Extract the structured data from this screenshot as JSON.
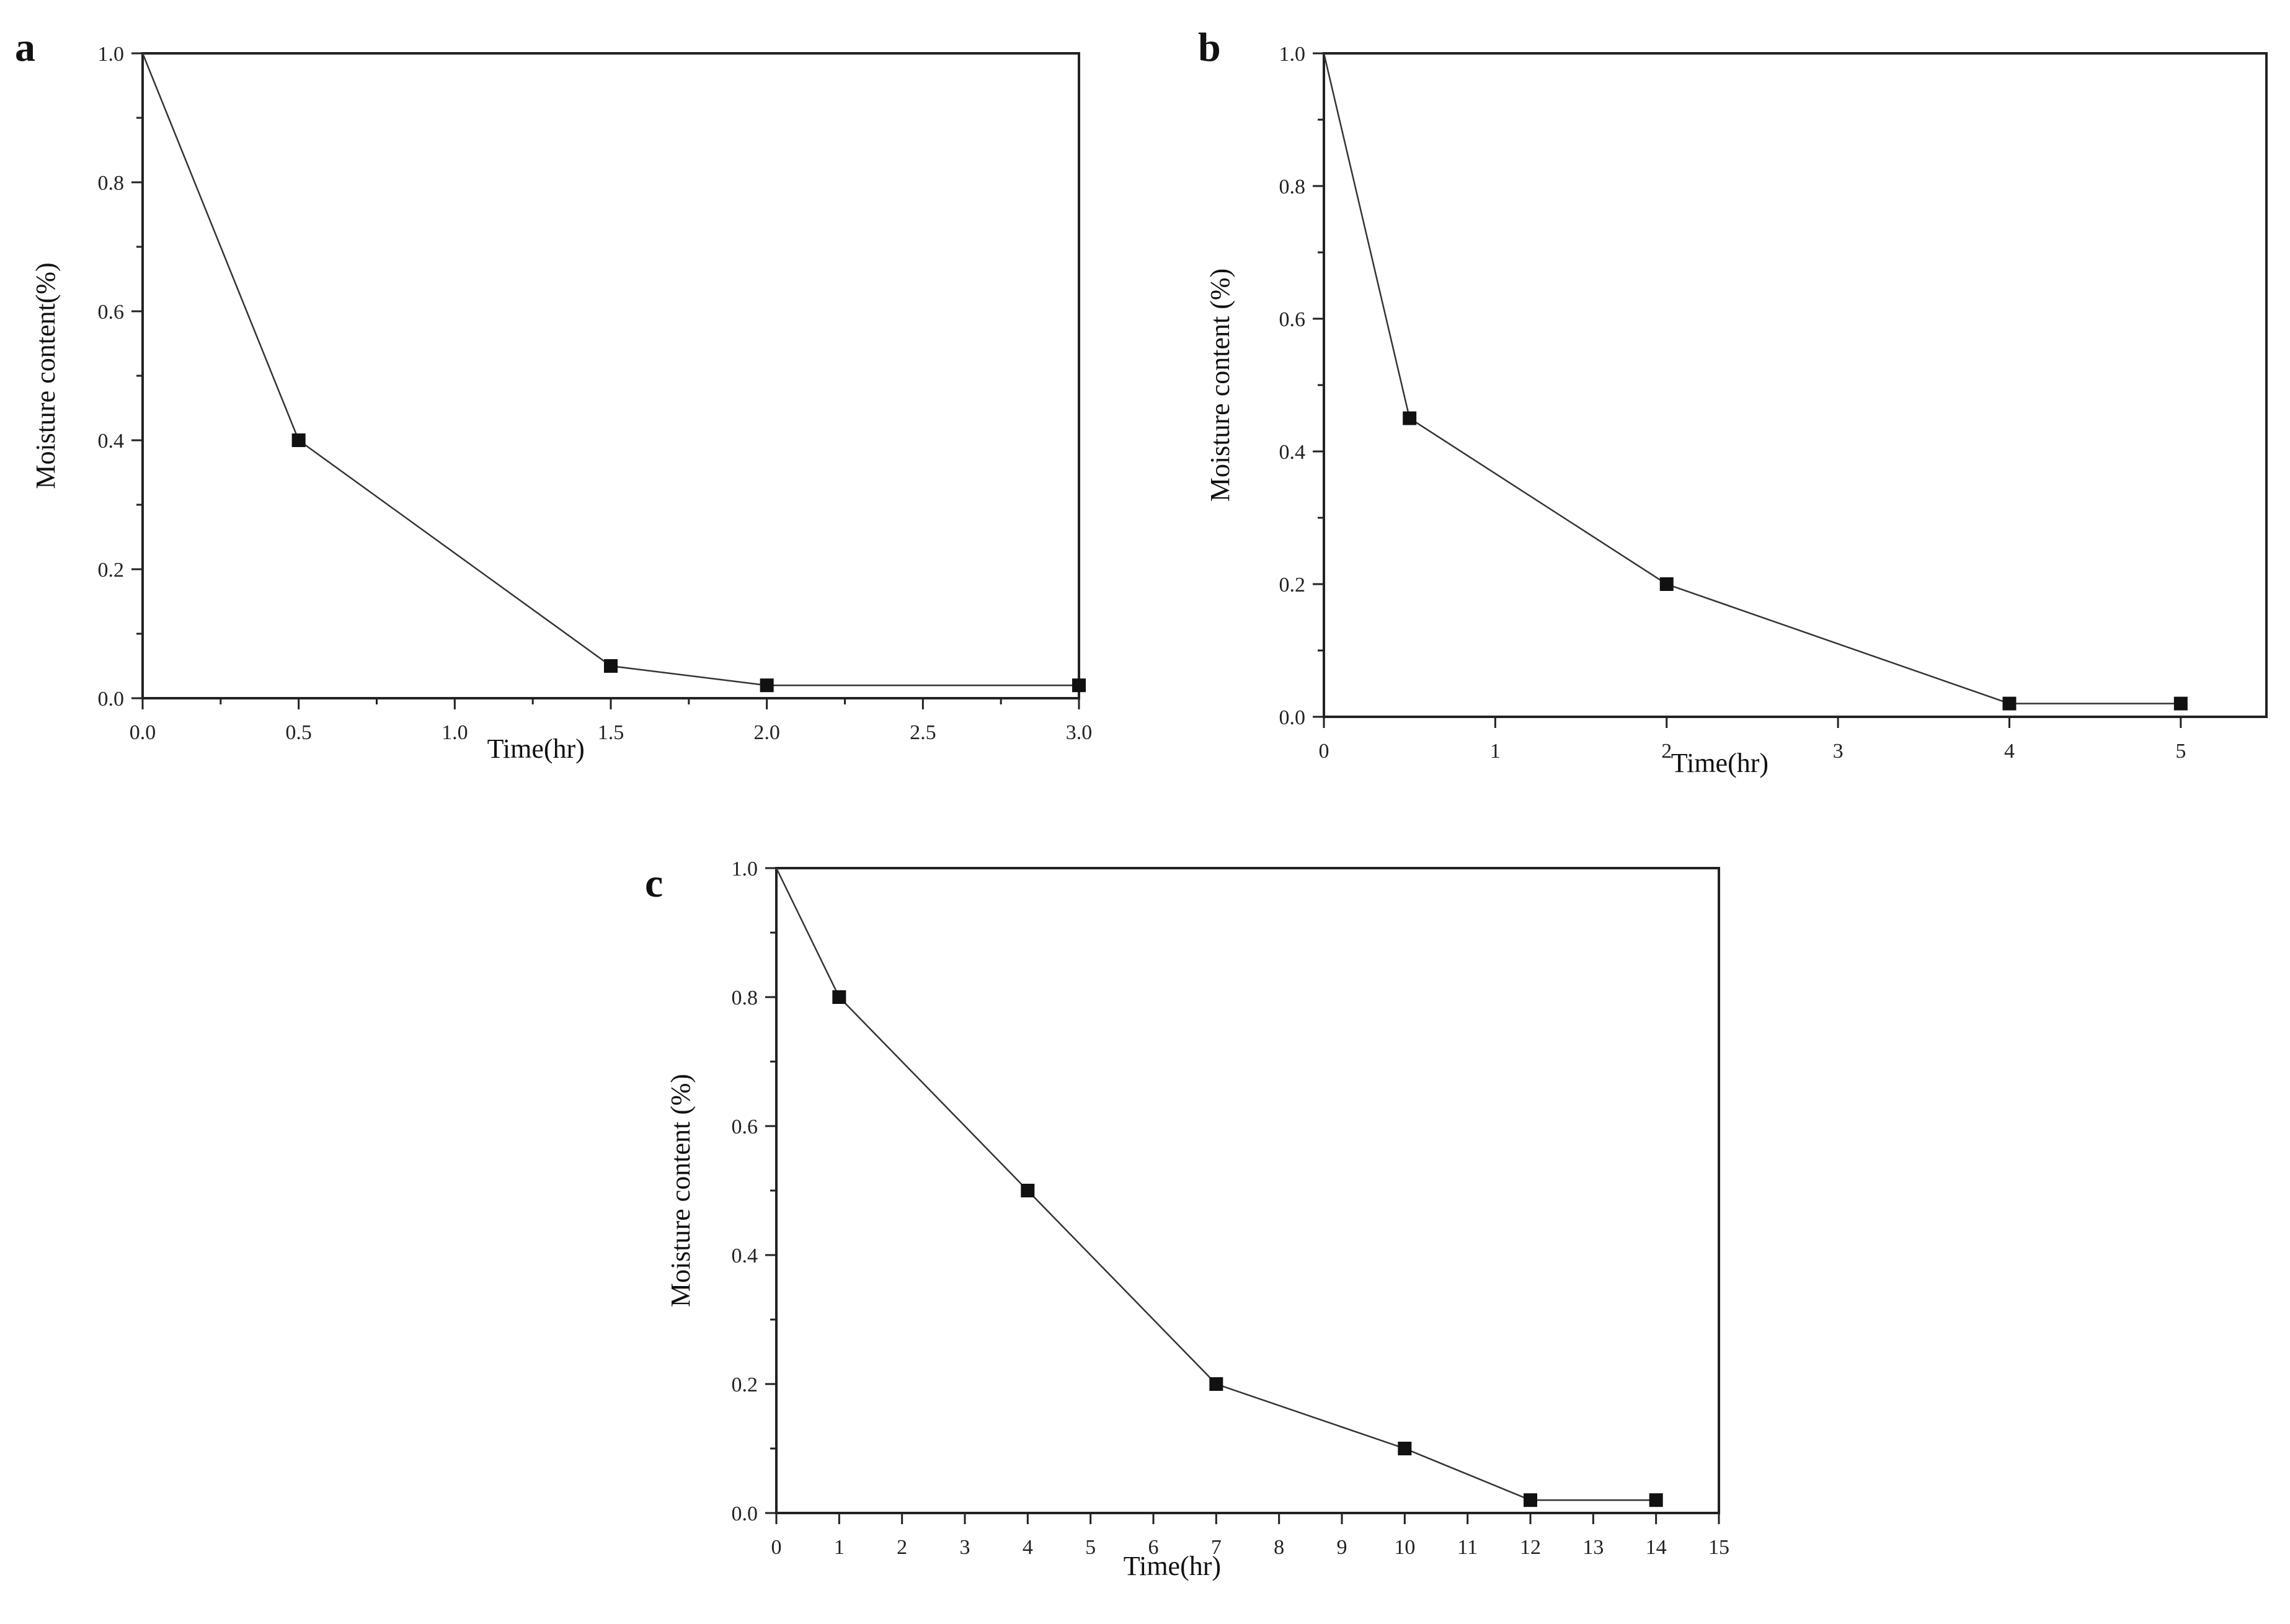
{
  "chart_data": [
    {
      "type": "line",
      "panel_label": "a",
      "xlabel": "Time(hr)",
      "ylabel": "Moisture content(%)",
      "xlim": [
        0,
        3
      ],
      "ylim": [
        0,
        1
      ],
      "x_ticks": [
        0,
        0.5,
        1,
        1.5,
        2,
        2.5,
        3
      ],
      "x_tick_labels": [
        "0.0",
        "0.5",
        "1.0",
        "1.5",
        "2.0",
        "2.5",
        "3.0"
      ],
      "y_ticks": [
        0,
        0.2,
        0.4,
        0.6,
        0.8,
        1
      ],
      "y_tick_labels": [
        "0.0",
        "0.2",
        "0.4",
        "0.6",
        "0.8",
        "1.0"
      ],
      "marker": "square",
      "series": [
        {
          "x": [
            0,
            0.5,
            1.5,
            2,
            3
          ],
          "y": [
            1.0,
            0.4,
            0.05,
            0.02,
            0.02
          ]
        }
      ]
    },
    {
      "type": "line",
      "panel_label": "b",
      "xlabel": "Time(hr)",
      "ylabel": "Moisture content (%)",
      "xlim": [
        0,
        5.5
      ],
      "ylim": [
        0,
        1
      ],
      "x_ticks": [
        0,
        1,
        2,
        3,
        4,
        5
      ],
      "x_tick_labels": [
        "0",
        "1",
        "2",
        "3",
        "4",
        "5"
      ],
      "y_ticks": [
        0,
        0.2,
        0.4,
        0.6,
        0.8,
        1
      ],
      "y_tick_labels": [
        "0.0",
        "0.2",
        "0.4",
        "0.6",
        "0.8",
        "1.0"
      ],
      "marker": "square",
      "series": [
        {
          "x": [
            0,
            0.5,
            2,
            4,
            5
          ],
          "y": [
            1.0,
            0.45,
            0.2,
            0.02,
            0.02
          ]
        }
      ]
    },
    {
      "type": "line",
      "panel_label": "c",
      "xlabel": "Time(hr)",
      "ylabel": "Moisture content (%)",
      "xlim": [
        0,
        15
      ],
      "ylim": [
        0,
        1
      ],
      "x_ticks": [
        0,
        1,
        2,
        3,
        4,
        5,
        6,
        7,
        8,
        9,
        10,
        11,
        12,
        13,
        14,
        15
      ],
      "x_tick_labels": [
        "0",
        "1",
        "2",
        "3",
        "4",
        "5",
        "6",
        "7",
        "8",
        "9",
        "10",
        "11",
        "12",
        "13",
        "14",
        "15"
      ],
      "y_ticks": [
        0,
        0.2,
        0.4,
        0.6,
        0.8,
        1
      ],
      "y_tick_labels": [
        "0.0",
        "0.2",
        "0.4",
        "0.6",
        "0.8",
        "1.0"
      ],
      "marker": "square",
      "series": [
        {
          "x": [
            0,
            1,
            4,
            7,
            10,
            12,
            14
          ],
          "y": [
            1.0,
            0.8,
            0.5,
            0.2,
            0.1,
            0.02,
            0.02
          ]
        }
      ]
    }
  ]
}
